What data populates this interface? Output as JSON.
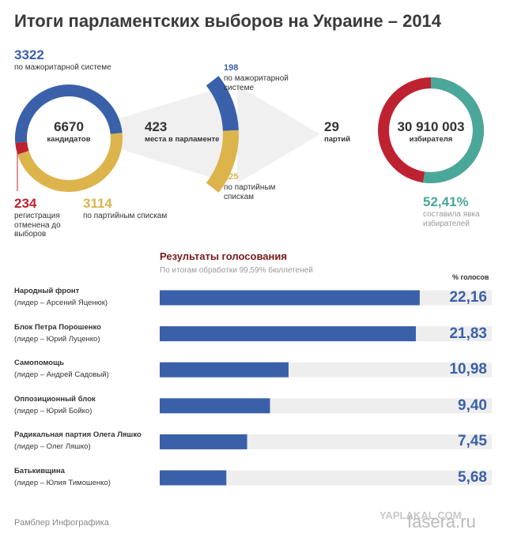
{
  "title": "Итоги парламентских выборов на Украине – 2014",
  "candidates": {
    "value": 6670,
    "label": "кандидатов",
    "segments": [
      {
        "value": 3322,
        "label": "по мажоритарной системе",
        "color": "#3a60a9"
      },
      {
        "value": 3114,
        "label": "по партийным спискам",
        "color": "#dcb44b"
      },
      {
        "value": 234,
        "label": "регистрация отменена до выборов",
        "color": "#be2230"
      }
    ]
  },
  "seats": {
    "value": 423,
    "label": "места в парламенте",
    "segments": [
      {
        "value": 198,
        "label": "по мажоритарной системе",
        "color": "#3a60a9"
      },
      {
        "value": 225,
        "label": "по партийным спискам",
        "color": "#dcb44b"
      }
    ]
  },
  "parties": {
    "value": 29,
    "label": "партий"
  },
  "voters": {
    "value": 30910003,
    "value_label": "30 910 003",
    "label": "избирателя",
    "turnout": 52.41,
    "turnout_label": "52,41%",
    "turnout_text": "составила явка избирателей",
    "turnout_color": "#4aa89a",
    "rest_color": "#be2230"
  },
  "results": {
    "title": "Результаты голосования",
    "subtitle": "По итогам обработки 99,59% бюллетеней",
    "column_label": "% голосов",
    "xlim": [
      0,
      28.3
    ],
    "color": "#3a60a9",
    "rows": [
      {
        "party": "Народный фронт",
        "leader": "(лидер – Арсений Яценюк)",
        "value": 22.16,
        "value_label": "22,16"
      },
      {
        "party": "Блок Петра Порошенко",
        "leader": "(лидер – Юрий Луценко)",
        "value": 21.83,
        "value_label": "21,83"
      },
      {
        "party": "Самопомощь",
        "leader": "(лидер – Андрей Садовый)",
        "value": 10.98,
        "value_label": "10,98"
      },
      {
        "party": "Оппозиционный блок",
        "leader": "(лидер – Юрий Бойко)",
        "value": 9.4,
        "value_label": "9,40"
      },
      {
        "party": "Радикальная партия Олега Ляшко",
        "leader": "(лидер – Олег Ляшко)",
        "value": 7.45,
        "value_label": "7,45"
      },
      {
        "party": "Батькивщина",
        "leader": "(лидер – Юлия Тимошенко)",
        "value": 5.68,
        "value_label": "5,68"
      }
    ]
  },
  "source": "Рамблер Инфографика",
  "watermarks": [
    "YAPLAKAL.COM",
    "fasera.ru"
  ]
}
